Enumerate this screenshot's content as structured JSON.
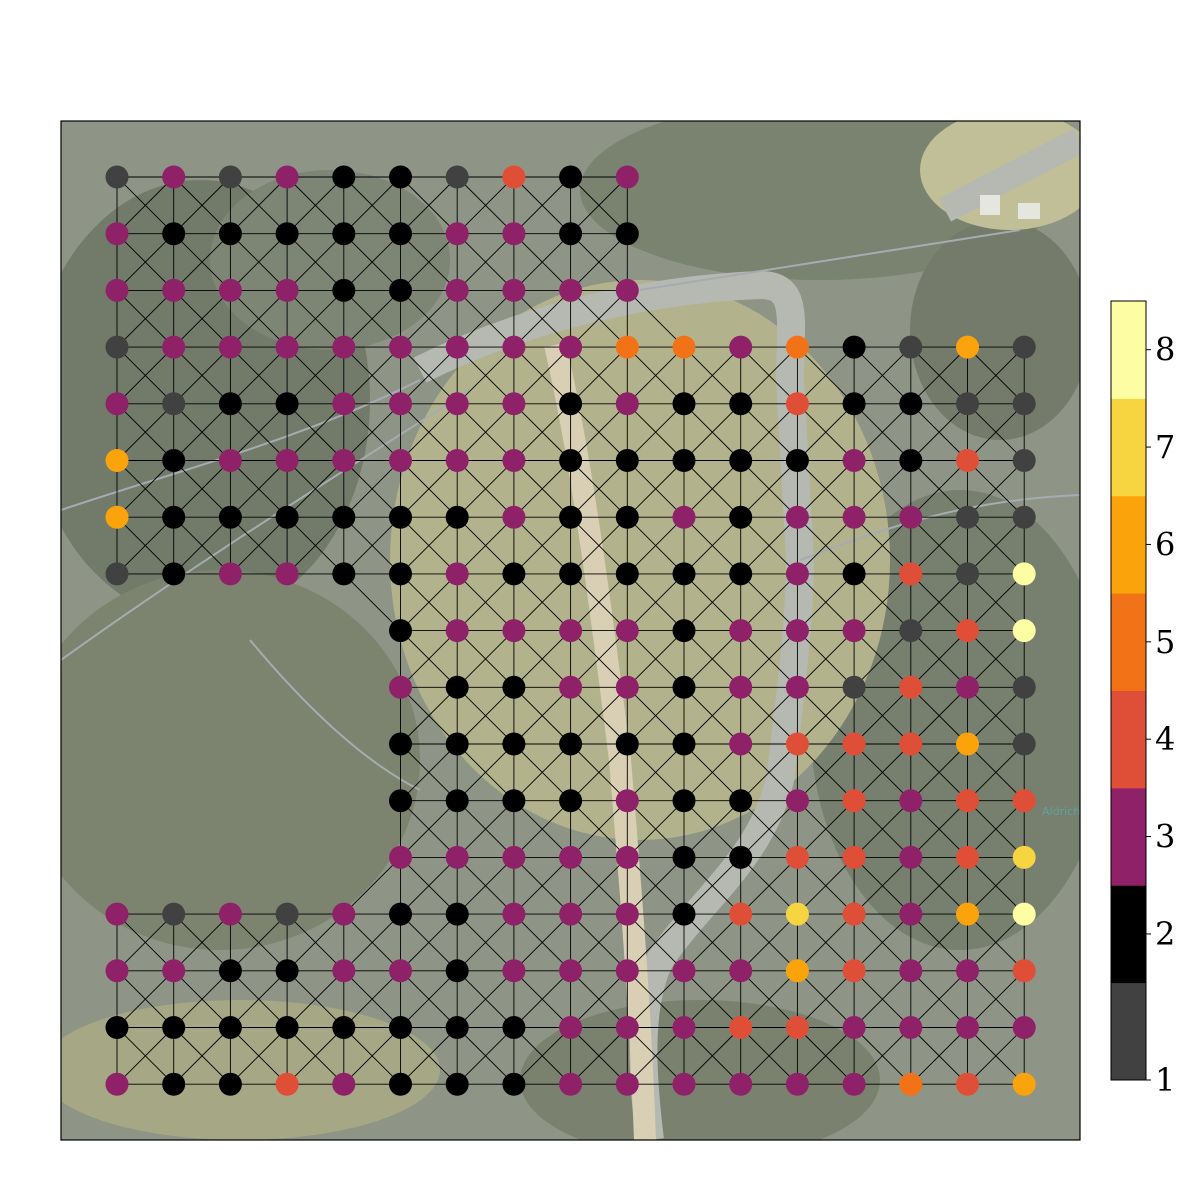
{
  "chart_data": {
    "type": "scatter",
    "description_of_axes": "grid coordinates (column, row) with row 0 at top",
    "xlim": [
      0,
      17
    ],
    "ylim": [
      0,
      16
    ],
    "colorbar": {
      "ticks": [
        1,
        2,
        3,
        4,
        5,
        6,
        7,
        8
      ],
      "tick_labels": [
        "1",
        "2",
        "3",
        "4",
        "5",
        "6",
        "7",
        "8"
      ],
      "placement": "right"
    },
    "colors": {
      "1": "#414141",
      "2": "#000000",
      "3": "#8f2169",
      "4": "#df4e36",
      "5": "#f27217",
      "6": "#fba30b",
      "7": "#f6d541",
      "8": "#fdfea4"
    },
    "map_label": "Aldrich",
    "rows": [
      [
        1,
        3,
        1,
        3,
        2,
        2,
        1,
        4,
        2,
        3
      ],
      [
        3,
        2,
        2,
        2,
        2,
        2,
        3,
        3,
        2,
        2
      ],
      [
        3,
        3,
        3,
        3,
        2,
        2,
        3,
        3,
        3,
        3
      ],
      [
        1,
        3,
        3,
        3,
        3,
        3,
        3,
        3,
        3,
        5,
        5,
        3,
        5,
        2,
        1,
        6,
        1
      ],
      [
        3,
        1,
        2,
        2,
        3,
        3,
        3,
        3,
        2,
        3,
        2,
        2,
        4,
        2,
        2,
        1,
        1
      ],
      [
        6,
        2,
        3,
        3,
        3,
        3,
        3,
        3,
        2,
        2,
        2,
        2,
        2,
        3,
        2,
        4,
        1
      ],
      [
        6,
        2,
        2,
        2,
        2,
        2,
        2,
        3,
        2,
        2,
        3,
        2,
        3,
        3,
        3,
        1,
        1
      ],
      [
        1,
        2,
        3,
        3,
        2,
        2,
        3,
        2,
        2,
        2,
        2,
        2,
        3,
        2,
        4,
        1,
        8
      ],
      [
        null,
        null,
        null,
        null,
        null,
        2,
        3,
        3,
        3,
        3,
        2,
        3,
        3,
        3,
        1,
        4,
        8
      ],
      [
        null,
        null,
        null,
        null,
        null,
        3,
        2,
        2,
        3,
        3,
        2,
        3,
        3,
        1,
        4,
        3,
        1
      ],
      [
        null,
        null,
        null,
        null,
        null,
        2,
        2,
        2,
        2,
        2,
        2,
        3,
        4,
        4,
        4,
        6,
        1
      ],
      [
        null,
        null,
        null,
        null,
        null,
        2,
        2,
        2,
        2,
        3,
        2,
        2,
        3,
        4,
        3,
        4,
        4
      ],
      [
        null,
        null,
        null,
        null,
        null,
        3,
        3,
        3,
        3,
        3,
        2,
        2,
        4,
        4,
        3,
        4,
        7
      ],
      [
        3,
        1,
        3,
        1,
        3,
        2,
        2,
        3,
        3,
        3,
        2,
        4,
        7,
        4,
        3,
        6,
        8
      ],
      [
        3,
        3,
        2,
        2,
        3,
        3,
        2,
        3,
        3,
        3,
        3,
        3,
        6,
        4,
        3,
        3,
        4
      ],
      [
        2,
        2,
        2,
        2,
        2,
        2,
        2,
        2,
        3,
        3,
        3,
        4,
        4,
        3,
        3,
        3,
        3
      ],
      [
        3,
        2,
        2,
        4,
        3,
        2,
        2,
        2,
        3,
        3,
        3,
        3,
        3,
        3,
        5,
        4,
        6
      ]
    ]
  }
}
